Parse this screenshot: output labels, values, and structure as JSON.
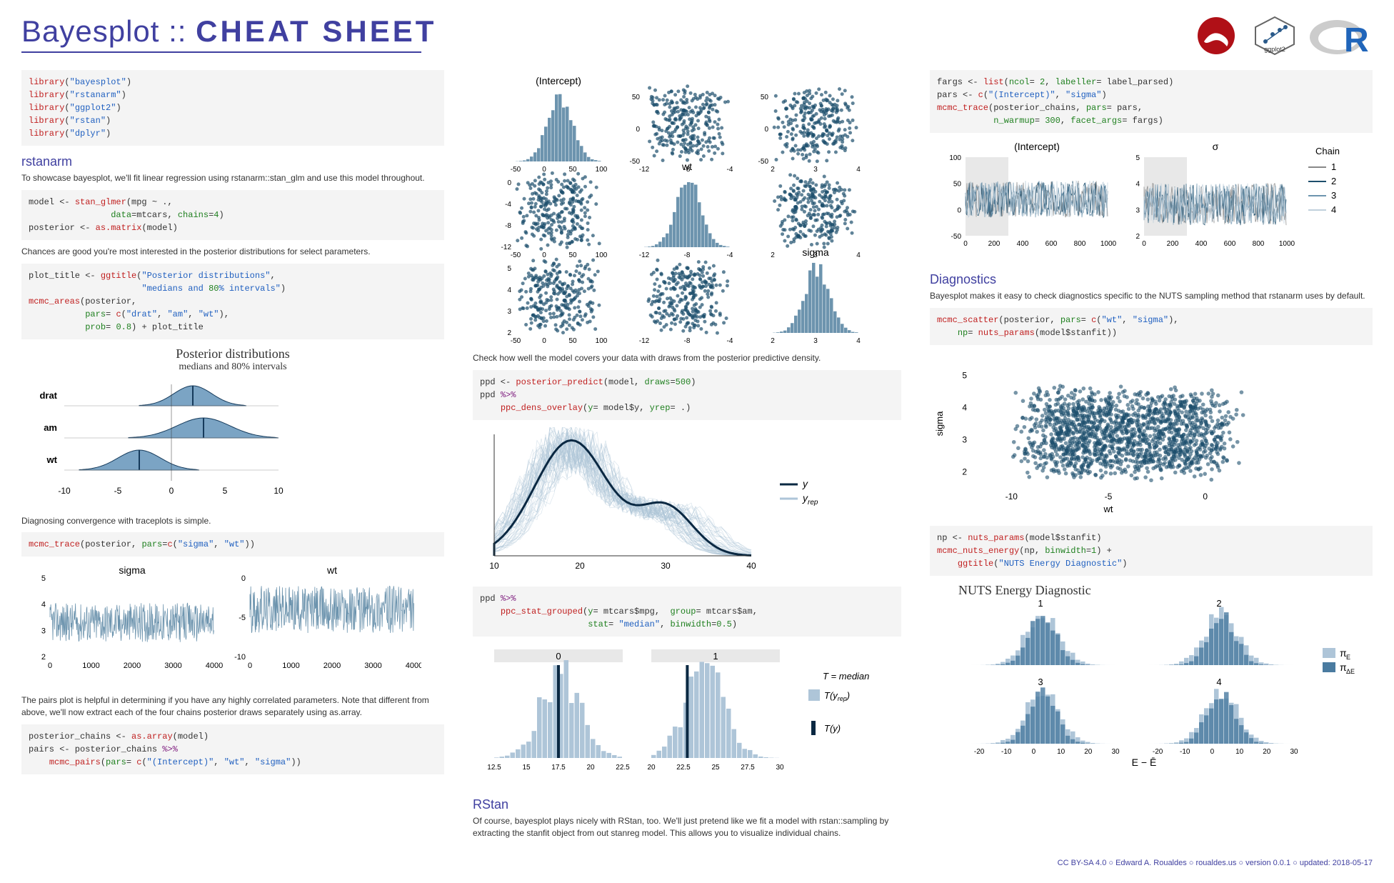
{
  "header": {
    "title_part1": "Bayesplot ::",
    "title_part2": "CHEAT SHEET"
  },
  "logos": {
    "stan_color": "#b01017",
    "ggplot_text": "ggplot2",
    "r_color": "#2065ba"
  },
  "col1": {
    "code1_lines": [
      {
        "fn": "library",
        "arg": "\"bayesplot\""
      },
      {
        "fn": "library",
        "arg": "\"rstanarm\""
      },
      {
        "fn": "library",
        "arg": "\"ggplot2\""
      },
      {
        "fn": "library",
        "arg": "\"rstan\""
      },
      {
        "fn": "library",
        "arg": "\"dplyr\""
      }
    ],
    "section1_title": "rstanarm",
    "section1_desc": "To showcase bayesplot, we'll fit linear regression using rstanarm::stan_glm and use this model throughout.",
    "code2": "model <- stan_glmer(mpg ~ .,\n                data=mtcars, chains=4)\nposterior <- as.matrix(model)",
    "desc2": "Chances are good you're most interested in the posterior distributions for select parameters.",
    "code3": "plot_title <- ggtitle(\"Posterior distributions\",\n                      \"medians and 80% intervals\")\nmcmc_areas(posterior,\n           pars = c(\"drat\", \"am\", \"wt\"),\n           prob = 0.8) + plot_title",
    "plot1": {
      "title": "Posterior distributions",
      "subtitle": "medians and 80% intervals",
      "params": [
        "drat",
        "am",
        "wt"
      ],
      "xticks": [
        -10,
        -5,
        0,
        5,
        10
      ],
      "fill": "#7ba4c4",
      "line": "#153a5b"
    },
    "desc3": "Diagnosing convergence with traceplots is simple.",
    "code4": "mcmc_trace(posterior, pars=c(\"sigma\", \"wt\"))",
    "plot2": {
      "panels": [
        "sigma",
        "wt"
      ],
      "sigma_yticks": [
        2,
        3,
        4,
        5
      ],
      "wt_yticks": [
        -10,
        -5,
        0
      ],
      "xticks": [
        0,
        1000,
        2000,
        3000,
        4000
      ],
      "color": "#6d94ae"
    },
    "desc4": "The pairs plot is helpful in determining if you have any highly correlated parameters. Note that different from above, we'll now extract each of the four chains posterior draws separately using as.array.",
    "code5": "posterior_chains <- as.array(model)\npairs <- posterior_chains %>%\n    mcmc_pairs(pars = c(\"(Intercept)\", \"wt\", \"sigma\"))"
  },
  "col2": {
    "pairs_plot": {
      "labels": [
        "(Intercept)",
        "wt",
        "sigma"
      ],
      "scatter_color": "#1d4e6c",
      "hist_color": "#6d94ae",
      "intercept_xticks": [
        -50,
        0,
        50,
        100
      ],
      "wt_xticks": [
        -12,
        -8,
        -4
      ],
      "sigma_xticks": [
        2,
        3,
        4
      ],
      "intercept_yticks": [
        -50,
        0,
        50
      ],
      "wt_yticks": [
        -12,
        -8,
        -4,
        0
      ],
      "sigma_yticks": [
        2,
        3,
        4,
        5
      ]
    },
    "desc1": "Check how well the model covers your data with draws from the posterior predictive density.",
    "code1": "ppd <- posterior_predict(model, draws=500)\nppd %>%\n    ppc_dens_overlay(y = model$y, yrep = .)",
    "dens_plot": {
      "xticks": [
        10,
        20,
        30,
        40
      ],
      "y_color": "#0a2842",
      "yrep_color": "#aec5d8",
      "legend": [
        "y",
        "y_rep"
      ]
    },
    "code2": "ppd %>%\n    ppc_stat_grouped(y = mtcars$mpg,  group = mtcars$am,\n                     stat = \"median\", binwidth=0.5)",
    "stat_plot": {
      "panels": [
        "0",
        "1"
      ],
      "panel0_xticks": [
        12.5,
        15.0,
        17.5,
        20.0,
        22.5
      ],
      "panel1_xticks": [
        20.0,
        22.5,
        25.0,
        27.5,
        30.0
      ],
      "fill": "#aec5d8",
      "line": "#0a2842",
      "legend": [
        "T = median",
        "T(y_rep)",
        "T(y)"
      ]
    },
    "section_title": "RStan",
    "desc2": "Of course, bayesplot plays nicely with RStan, too. We'll just pretend like we fit a model with rstan::sampling by extracting the stanfit object from out stanreg model. This allows you to visualize individual chains."
  },
  "col3": {
    "code1": "fargs <- list(ncol = 2, labeller = label_parsed)\npars <- c(\"(Intercept)\", \"sigma\")\nmcmc_trace(posterior_chains, pars = pars,\n           n_warmup = 300, facet_args = fargs)",
    "trace_plot": {
      "panels": [
        "(Intercept)",
        "σ"
      ],
      "intercept_yticks": [
        -50,
        0,
        50,
        100
      ],
      "sigma_yticks": [
        2,
        3,
        4,
        5
      ],
      "xticks": [
        0,
        200,
        400,
        600,
        800,
        1000
      ],
      "chain_colors": [
        "#888888",
        "#1d4e6c",
        "#6d94ae",
        "#c0d0dc"
      ],
      "legend_title": "Chain",
      "chain_labels": [
        "1",
        "2",
        "3",
        "4"
      ],
      "warmup_fill": "#e8e8e8"
    },
    "section1_title": "Diagnostics",
    "desc1": "Bayesplot makes it easy to check diagnostics specific to the NUTS sampling method that rstanarm uses by default.",
    "code2": "mcmc_scatter(posterior, pars = c(\"wt\", \"sigma\"),\n    np = nuts_params(model$stanfit))",
    "scatter_plot": {
      "xlabel": "wt",
      "ylabel": "sigma",
      "xticks": [
        -10,
        -5,
        0
      ],
      "yticks": [
        2,
        3,
        4,
        5
      ],
      "color": "#1d4e6c"
    },
    "code3": "np <- nuts_params(model$stanfit)\nmcmc_nuts_energy(np, binwidth=1) +\n    ggtitle(\"NUTS Energy Diagnostic\")",
    "energy_plot": {
      "title": "NUTS Energy Diagnostic",
      "panels": [
        "1",
        "2",
        "3",
        "4"
      ],
      "xticks": [
        -20,
        -10,
        0,
        10,
        20,
        30
      ],
      "xlabel": "E − Ē",
      "fill1": "#aec5d8",
      "fill2": "#4a7ba0",
      "legend": [
        "π_E",
        "π_ΔE"
      ]
    }
  },
  "footer": "CC BY-SA 4.0 ○ Edward A. Roualdes ○ roualdes.us ○ version 0.0.1 ○ updated: 2018-05-17"
}
